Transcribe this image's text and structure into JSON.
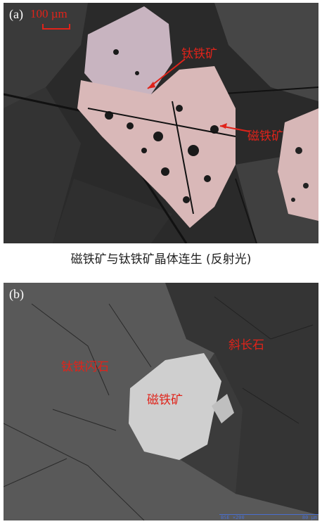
{
  "panel_a": {
    "label": "(a)",
    "scale_text": "100 µm",
    "label_ilmenite": "钛铁矿",
    "label_magnetite": "磁铁矿"
  },
  "caption_a": "磁铁矿与钛铁矿晶体连生 (反射光)",
  "panel_b": {
    "label": "(b)",
    "label_ilmenite_hornblende": "钛铁闪石",
    "label_plagioclase": "斜长石",
    "label_magnetite": "磁铁矿",
    "scale_left": "BSE ×200",
    "scale_right": "80 µm"
  },
  "colors": {
    "annotation": "#e0231a",
    "ore_a": "#d9b8b8",
    "ore_b": "#cfcfcf"
  }
}
